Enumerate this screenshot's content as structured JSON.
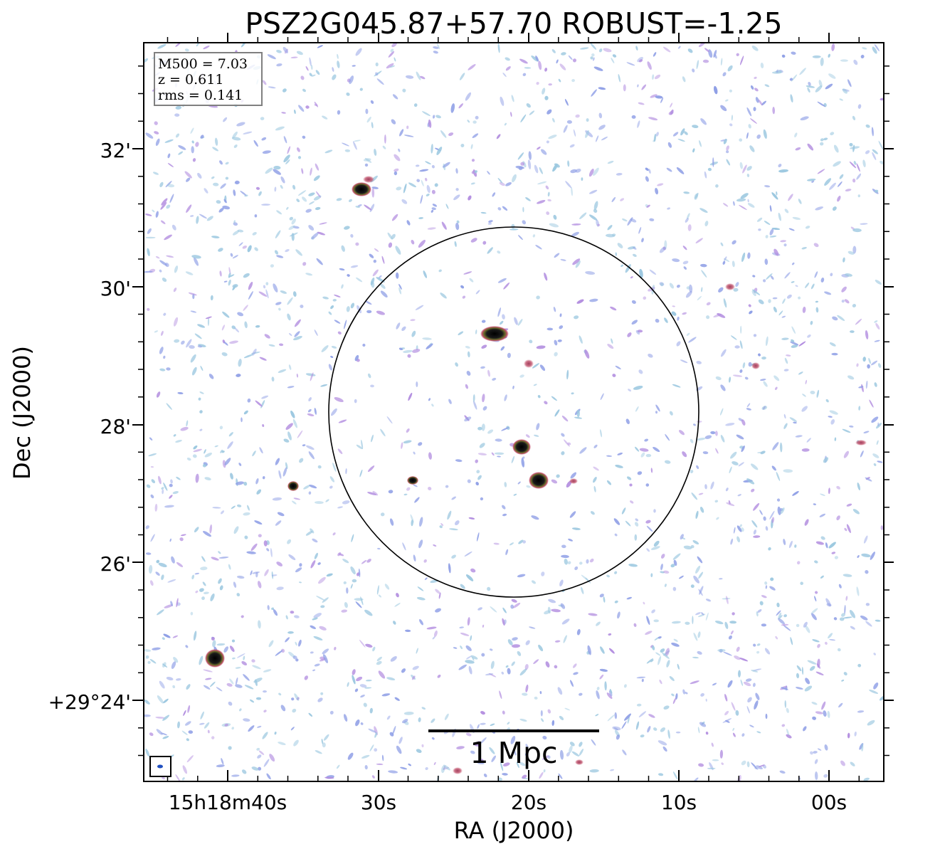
{
  "figure": {
    "title": "PSZ2G045.87+57.70 ROBUST=-1.25",
    "xlabel": "RA (J2000)",
    "ylabel": "Dec (J2000)",
    "x_ticks": [
      "15h18m40s",
      "30s",
      "20s",
      "10s",
      "00s"
    ],
    "y_ticks": [
      "32'",
      "30'",
      "28'",
      "26'",
      "+29°24'"
    ],
    "info_box": {
      "mass": "M500 = 7.03",
      "redshift": "z = 0.611",
      "rms": "rms = 0.141"
    },
    "scale_bar_label": "1 Mpc",
    "colors": {
      "noise_light": "#9cc8e0",
      "noise_mid": "#8f9fe6",
      "noise_violet": "#b38fe0",
      "source_halo": "#c0506a",
      "source_core": "#000000",
      "circle": "#000000",
      "frame": "#000000"
    }
  }
}
